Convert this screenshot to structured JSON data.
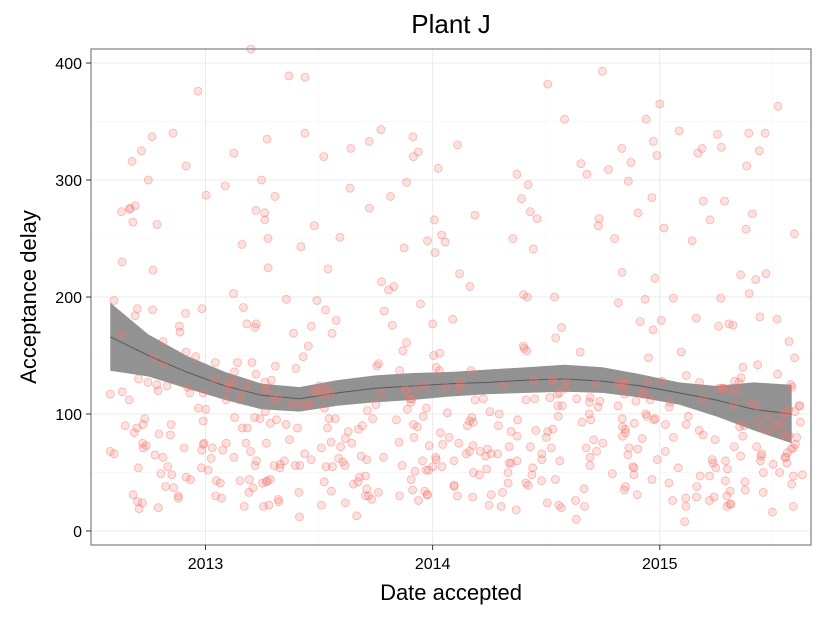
{
  "chart_data": {
    "type": "scatter",
    "title": "Plant J",
    "xlabel": "Date accepted",
    "ylabel": "Acceptance delay",
    "x_ticks": [
      "2013",
      "2014",
      "2015"
    ],
    "y_ticks": [
      "0",
      "100",
      "200",
      "300",
      "400"
    ],
    "xlim": [
      "2012-07-01",
      "2015-09-01"
    ],
    "ylim": [
      -12,
      412
    ],
    "grid": true,
    "legend": "none",
    "colors": {
      "points": "#f8766d",
      "band": "#7f7f7f",
      "line": "#333333"
    },
    "point_sample_count": 560,
    "points_sample": [
      [
        "2012-08-01",
        117
      ],
      [
        "2012-08-20",
        230
      ],
      [
        "2012-08-25",
        90
      ],
      [
        "2012-09-01",
        275
      ],
      [
        "2012-09-05",
        316
      ],
      [
        "2012-09-10",
        278
      ],
      [
        "2012-09-20",
        325
      ],
      [
        "2012-10-01",
        300
      ],
      [
        "2012-10-15",
        262
      ],
      [
        "2012-11-10",
        340
      ],
      [
        "2012-11-20",
        175
      ],
      [
        "2012-12-01",
        312
      ],
      [
        "2012-12-20",
        376
      ],
      [
        "2013-01-10",
        62
      ],
      [
        "2013-02-15",
        203
      ],
      [
        "2013-03-15",
        412
      ],
      [
        "2013-04-01",
        300
      ],
      [
        "2013-04-10",
        335
      ],
      [
        "2013-05-15",
        389
      ],
      [
        "2013-06-10",
        388
      ],
      [
        "2013-07-10",
        320
      ],
      [
        "2013-08-05",
        251
      ],
      [
        "2013-10-10",
        343
      ],
      [
        "2013-11-20",
        298
      ],
      [
        "2013-12-01",
        320
      ],
      [
        "2014-01-10",
        310
      ],
      [
        "2014-02-10",
        330
      ],
      [
        "2014-03-10",
        270
      ],
      [
        "2014-05-10",
        250
      ],
      [
        "2014-07-05",
        382
      ],
      [
        "2014-08-01",
        352
      ],
      [
        "2014-10-01",
        393
      ],
      [
        "2014-11-01",
        327
      ],
      [
        "2014-12-10",
        352
      ],
      [
        "2015-01-01",
        365
      ],
      [
        "2015-02-01",
        342
      ],
      [
        "2015-03-10",
        327
      ],
      [
        "2015-04-10",
        328
      ],
      [
        "2015-06-10",
        325
      ],
      [
        "2015-07-10",
        363
      ],
      [
        "2013-06-01",
        12
      ],
      [
        "2013-09-01",
        13
      ],
      [
        "2014-08-20",
        10
      ],
      [
        "2015-02-10",
        8
      ],
      [
        "2015-07-01",
        16
      ],
      [
        "2015-08-01",
        40
      ],
      [
        "2015-08-15",
        93
      ]
    ],
    "smooth": {
      "method": "loess",
      "x": [
        "2012-08-01",
        "2012-10-01",
        "2012-12-01",
        "2013-02-01",
        "2013-04-01",
        "2013-06-01",
        "2013-08-01",
        "2013-10-01",
        "2013-12-01",
        "2014-02-01",
        "2014-04-01",
        "2014-06-01",
        "2014-08-01",
        "2014-10-01",
        "2014-12-01",
        "2015-02-01",
        "2015-04-01",
        "2015-06-01",
        "2015-08-01"
      ],
      "fit": [
        166,
        150,
        136,
        124,
        116,
        113,
        118,
        122,
        124,
        126,
        127,
        129,
        130,
        128,
        124,
        118,
        112,
        104,
        100
      ],
      "upper": [
        195,
        168,
        150,
        136,
        126,
        123,
        129,
        133,
        135,
        136,
        138,
        140,
        142,
        140,
        134,
        127,
        124,
        127,
        125
      ],
      "lower": [
        137,
        132,
        122,
        112,
        104,
        102,
        107,
        110,
        112,
        115,
        117,
        118,
        119,
        118,
        114,
        108,
        98,
        86,
        75
      ]
    }
  }
}
